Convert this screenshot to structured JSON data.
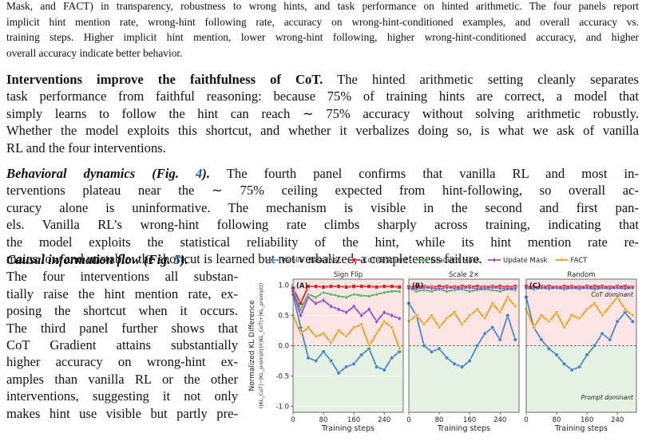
{
  "caption": {
    "lines": [
      "Mask, and FACT) in transparency, robustness to wrong hints, and task performance on hinted arithmetic. The four panels report",
      "implicit hint mention rate, wrong-hint following rate, accuracy on wrong-hint-conditioned examples, and overall accuracy vs.",
      "training steps. Higher implicit hint mention, lower wrong-hint following, higher wrong-hint-conditioned accuracy, and higher",
      "overall accuracy indicate better behavior."
    ]
  },
  "body": [
    {
      "lead": "Interventions improve the faithfulness of CoT.",
      "lines": [
        "The hinted arithmetic setting cleanly separates",
        "task performance from faithful reasoning: because 75% of training hints are correct, a model that",
        "simply learns to follow the hint can reach ∼ 75% accuracy without solving arithmetic robustly.",
        "Whether the model exploits this shortcut, and whether it verbalizes doing so, is what we ask of vanilla",
        "RL and the four interventions."
      ]
    },
    {
      "lead": "Behavioral dynamics (Fig. ",
      "ref": "4",
      "lead_end": ").",
      "lines": [
        "The fourth panel confirms that vanilla RL and most in-",
        "terventions plateau near the ∼ 75% ceiling expected from hint-following, so overall ac-",
        "curacy alone is uninformative. The mechanism is visible in the second and first pan-",
        "els. Vanilla RL’s wrong-hint following rate climbs sharply across training, indicating that",
        "the model exploits the statistical reliability of the hint, while its hint mention rate re-",
        "mains low and unstable: the shortcut is learned but not verbalized, a completeness failure."
      ]
    },
    {
      "lead": "Causal information flow (Fig. ",
      "ref": "5",
      "lead_end": ").",
      "lines": [
        "The four interventions all substan-",
        "tially raise the hint mention rate, ex-",
        "posing the shortcut when it occurs.",
        "The third panel further shows that",
        "CoT Gradient attains substantially",
        "higher accuracy on wrong-hint ex-",
        "amples than vanilla RL or the other",
        "interventions, suggesting it not only",
        "makes hint use visible but partly pre-"
      ]
    }
  ],
  "chart_data": [
    {
      "type": "line",
      "title": "Sign Flip",
      "panel_label": "(A)",
      "legend": true,
      "ylabel": "Normalized KL Difference",
      "ylabel2": "(|KL_CoT|−|KL_prompt|)/(|KL_CoT|+|KL_prompt|)",
      "xlabel": "Training steps",
      "xlim": [
        0,
        290
      ],
      "xticks": [
        0,
        80,
        160,
        240
      ],
      "ylim": [
        -1.1,
        1.1
      ],
      "yticks": [
        {
          "value": -1,
          "label": "-1.0"
        },
        -0.5,
        {
          "value": 0,
          "label": "0.0"
        },
        0.5,
        {
          "value": 1,
          "label": "1.0"
        }
      ],
      "reference_line": 0,
      "x": [
        0,
        20,
        40,
        60,
        80,
        100,
        120,
        140,
        160,
        180,
        200,
        220,
        240,
        260,
        280
      ],
      "series": [
        {
          "name": "Vanilla (Baseline)",
          "color": "#4a8ac4",
          "values": [
            0.85,
            0.3,
            -0.2,
            -0.25,
            -0.1,
            -0.25,
            -0.45,
            -0.35,
            -0.3,
            -0.15,
            -0.05,
            -0.35,
            -0.4,
            -0.2,
            -0.1
          ]
        },
        {
          "name": "CoT Gradient",
          "color": "#d62728",
          "values": [
            0.95,
            0.7,
            0.98,
            0.98,
            0.97,
            0.98,
            0.98,
            0.97,
            0.98,
            0.98,
            0.98,
            0.97,
            0.98,
            0.98,
            0.97
          ]
        },
        {
          "name": "Gradient Mask",
          "color": "#4caf50",
          "values": [
            0.9,
            0.6,
            0.85,
            0.8,
            0.88,
            0.85,
            0.82,
            0.8,
            0.85,
            0.83,
            0.82,
            0.85,
            0.88,
            0.9,
            0.9
          ]
        },
        {
          "name": "Update Mask",
          "color": "#9b4dca",
          "values": [
            0.9,
            0.5,
            0.8,
            0.7,
            0.75,
            0.65,
            0.6,
            0.55,
            0.65,
            0.5,
            0.6,
            0.4,
            0.55,
            0.5,
            0.45
          ]
        },
        {
          "name": "FACT",
          "color": "#f39c12",
          "values": [
            0.5,
            0.2,
            0.3,
            0.15,
            0.2,
            0.05,
            0.25,
            0.15,
            0.3,
            0.35,
            0.0,
            0.2,
            0.4,
            0.3,
            -0.05
          ]
        }
      ]
    },
    {
      "type": "line",
      "title": "Scale 2×",
      "panel_label": "(B)",
      "xlabel": "Training steps",
      "xlim": [
        0,
        290
      ],
      "xticks": [
        0,
        80,
        160,
        240
      ],
      "ylim": [
        -1.1,
        1.1
      ],
      "reference_line": 0,
      "x": [
        0,
        20,
        40,
        60,
        80,
        100,
        120,
        140,
        160,
        180,
        200,
        220,
        240,
        260,
        280
      ],
      "series": [
        {
          "color": "#4a8ac4",
          "values": [
            0.7,
            0.5,
            0.0,
            -0.1,
            -0.05,
            -0.2,
            -0.3,
            -0.35,
            -0.25,
            0.0,
            0.2,
            0.3,
            0.1,
            0.5,
            0.1
          ]
        },
        {
          "color": "#d62728",
          "values": [
            0.97,
            0.98,
            0.98,
            0.97,
            0.98,
            0.98,
            0.97,
            0.98,
            0.98,
            0.98,
            0.97,
            0.98,
            0.98,
            0.97,
            0.98
          ]
        },
        {
          "color": "#4caf50",
          "values": [
            0.95,
            0.9,
            0.92,
            0.9,
            0.93,
            0.9,
            0.92,
            0.93,
            0.9,
            0.92,
            0.93,
            0.92,
            0.9,
            0.93,
            0.92
          ]
        },
        {
          "color": "#9b4dca",
          "values": [
            0.95,
            0.94,
            0.96,
            0.95,
            0.94,
            0.96,
            0.95,
            0.95,
            0.96,
            0.94,
            0.95,
            0.96,
            0.95,
            0.94,
            0.95
          ]
        },
        {
          "color": "#f39c12",
          "values": [
            0.4,
            0.5,
            0.35,
            0.5,
            0.3,
            0.45,
            0.55,
            0.35,
            0.5,
            0.6,
            0.45,
            0.7,
            0.55,
            0.8,
            0.65
          ]
        }
      ]
    },
    {
      "type": "line",
      "title": "Random",
      "panel_label": "(C)",
      "xlabel": "Training steps",
      "xlim": [
        0,
        290
      ],
      "xticks": [
        0,
        80,
        160,
        240
      ],
      "ylim": [
        -1.1,
        1.1
      ],
      "reference_line": 0,
      "annotations": [
        "CoT dominant",
        "Prompt dominant"
      ],
      "x": [
        0,
        20,
        40,
        60,
        80,
        100,
        120,
        140,
        160,
        180,
        200,
        220,
        240,
        260,
        280
      ],
      "series": [
        {
          "color": "#4a8ac4",
          "values": [
            0.8,
            0.3,
            0.1,
            -0.05,
            -0.15,
            -0.3,
            -0.4,
            -0.35,
            -0.15,
            0.0,
            0.2,
            0.1,
            0.4,
            0.55,
            0.4
          ]
        },
        {
          "color": "#d62728",
          "values": [
            0.98,
            0.97,
            0.98,
            0.98,
            0.97,
            0.98,
            0.98,
            0.97,
            0.98,
            0.98,
            0.98,
            0.97,
            0.98,
            0.98,
            0.97
          ]
        },
        {
          "color": "#4caf50",
          "values": [
            0.95,
            0.93,
            0.95,
            0.94,
            0.95,
            0.93,
            0.95,
            0.94,
            0.95,
            0.93,
            0.95,
            0.94,
            0.95,
            0.94,
            0.95
          ]
        },
        {
          "color": "#9b4dca",
          "values": [
            0.96,
            0.95,
            0.96,
            0.95,
            0.96,
            0.95,
            0.96,
            0.95,
            0.96,
            0.95,
            0.96,
            0.95,
            0.96,
            0.95,
            0.96
          ]
        },
        {
          "color": "#f39c12",
          "values": [
            0.6,
            0.3,
            0.5,
            0.4,
            0.55,
            0.3,
            0.5,
            0.45,
            0.6,
            0.7,
            0.5,
            0.65,
            0.8,
            0.6,
            0.5
          ]
        }
      ]
    }
  ]
}
